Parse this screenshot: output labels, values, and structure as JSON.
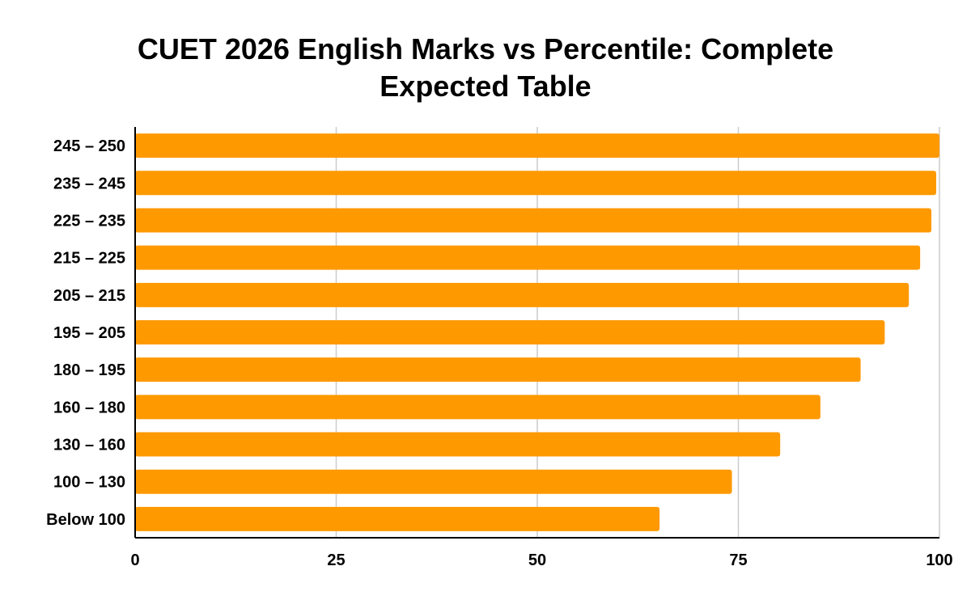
{
  "chart_data": {
    "type": "bar",
    "orientation": "horizontal",
    "title_lines": [
      "CUET 2026 English Marks vs Percentile: Complete",
      "Expected Table"
    ],
    "xlabel": "",
    "ylabel": "",
    "categories": [
      "245 – 250",
      "235 – 245",
      "225 – 235",
      "215 – 225",
      "205 – 215",
      "195 – 205",
      "180 – 195",
      "160 – 180",
      "130 – 160",
      "100 – 130",
      "Below 100"
    ],
    "values": [
      100,
      99.6,
      99,
      97.6,
      96.2,
      93.2,
      90.2,
      85.2,
      80.2,
      74.2,
      65.2
    ],
    "xlim": [
      0,
      100
    ],
    "xticks": [
      "0",
      "25",
      "50",
      "75",
      "100"
    ],
    "grid": true,
    "legend": "none",
    "bar_color": "#ff9900"
  }
}
